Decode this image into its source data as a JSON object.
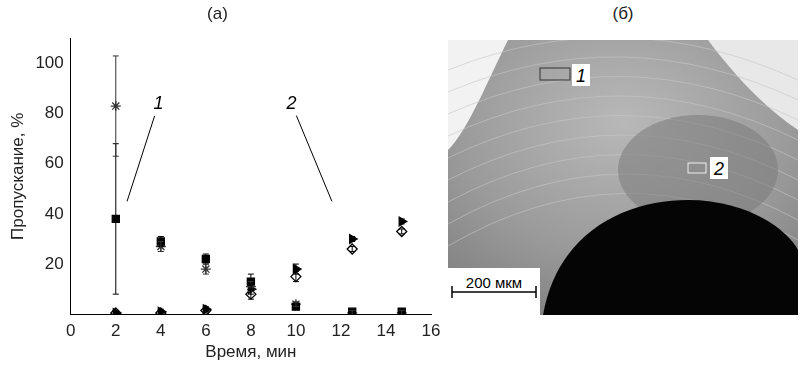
{
  "chart_data": {
    "type": "scatter",
    "title": "(а)",
    "x_label": "Время, мин",
    "y_label": "Пропускание, %",
    "xlim": [
      0,
      16
    ],
    "xticks": [
      0,
      2,
      4,
      6,
      8,
      10,
      12,
      14,
      16
    ],
    "ylim": [
      0,
      110
    ],
    "yticks": [
      20,
      40,
      60,
      80,
      100
    ],
    "grid": false,
    "series": [
      {
        "color": "#000000",
        "marker": "square",
        "x": [
          2,
          4,
          6,
          8,
          10,
          12.5,
          14.7
        ],
        "values": [
          38,
          29,
          22,
          13,
          3,
          1,
          1
        ],
        "errors": [
          30,
          2,
          2,
          3,
          1,
          1,
          1
        ]
      },
      {
        "color": "#333333",
        "marker": "star",
        "x": [
          2,
          4,
          6,
          8,
          10,
          12.5,
          14.7
        ],
        "values": [
          83,
          27,
          18,
          11,
          4,
          0.5,
          0.5
        ],
        "errors": [
          20,
          2,
          2,
          2,
          1,
          1,
          1
        ]
      },
      {
        "color": "#000000",
        "marker": "diamond_open",
        "x": [
          2,
          4,
          6,
          8,
          10,
          12.5,
          14.7
        ],
        "values": [
          0.5,
          0.5,
          1.5,
          8,
          15,
          26,
          33
        ],
        "errors": [
          1,
          1,
          1,
          2,
          2,
          1,
          1
        ]
      },
      {
        "color": "#000000",
        "marker": "triangle_right",
        "x": [
          2,
          4,
          6,
          8,
          10,
          12.5,
          14.7
        ],
        "values": [
          0.5,
          1,
          2,
          10,
          18,
          30,
          37
        ],
        "errors": [
          1,
          1,
          1,
          2,
          2,
          1,
          1
        ]
      }
    ],
    "annotations": [
      {
        "text": "1",
        "x": 3.9,
        "y": 84,
        "x_end": 2.5,
        "y_end": 45
      },
      {
        "text": "2",
        "x": 9.8,
        "y": 84,
        "x_end": 11.6,
        "y_end": 45
      }
    ]
  },
  "micrograph": {
    "title": "(б)",
    "regions": [
      "1",
      "2"
    ],
    "scale_bar": "200 мкм"
  }
}
